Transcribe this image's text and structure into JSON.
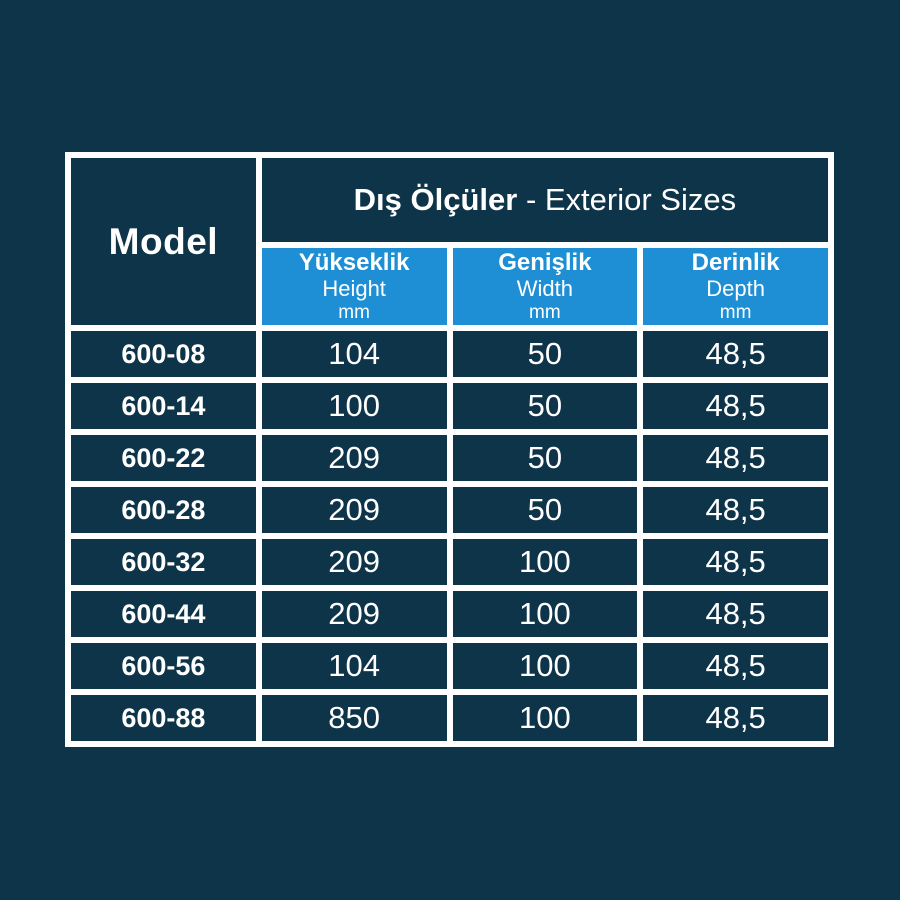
{
  "page": {
    "background_color": "#0e3449",
    "accent_blue": "#1e8fd4",
    "grid_line_color": "#ffffff",
    "text_color": "#ffffff"
  },
  "table": {
    "model_header": "Model",
    "group_header_bold": "Dış Ölçüler",
    "group_header_regular": " - Exterior Sizes",
    "columns": [
      {
        "title": "Yükseklik",
        "subtitle": "Height",
        "unit": "mm"
      },
      {
        "title": "Genişlik",
        "subtitle": "Width",
        "unit": "mm"
      },
      {
        "title": "Derinlik",
        "subtitle": "Depth",
        "unit": "mm"
      }
    ],
    "rows": [
      {
        "model": "600-08",
        "height": "104",
        "width": "50",
        "depth": "48,5"
      },
      {
        "model": "600-14",
        "height": "100",
        "width": "50",
        "depth": "48,5"
      },
      {
        "model": "600-22",
        "height": "209",
        "width": "50",
        "depth": "48,5"
      },
      {
        "model": "600-28",
        "height": "209",
        "width": "50",
        "depth": "48,5"
      },
      {
        "model": "600-32",
        "height": "209",
        "width": "100",
        "depth": "48,5"
      },
      {
        "model": "600-44",
        "height": "209",
        "width": "100",
        "depth": "48,5"
      },
      {
        "model": "600-56",
        "height": "104",
        "width": "100",
        "depth": "48,5"
      },
      {
        "model": "600-88",
        "height": "850",
        "width": "100",
        "depth": "48,5"
      }
    ]
  },
  "chart_data": {
    "type": "table",
    "title": "Dış Ölçüler - Exterior Sizes",
    "columns": [
      "Model",
      "Yükseklik Height mm",
      "Genişlik Width mm",
      "Derinlik Depth mm"
    ],
    "rows": [
      [
        "600-08",
        "104",
        "50",
        "48,5"
      ],
      [
        "600-14",
        "100",
        "50",
        "48,5"
      ],
      [
        "600-22",
        "209",
        "50",
        "48,5"
      ],
      [
        "600-28",
        "209",
        "50",
        "48,5"
      ],
      [
        "600-32",
        "209",
        "100",
        "48,5"
      ],
      [
        "600-44",
        "209",
        "100",
        "48,5"
      ],
      [
        "600-56",
        "104",
        "100",
        "48,5"
      ],
      [
        "600-88",
        "850",
        "100",
        "48,5"
      ]
    ]
  }
}
